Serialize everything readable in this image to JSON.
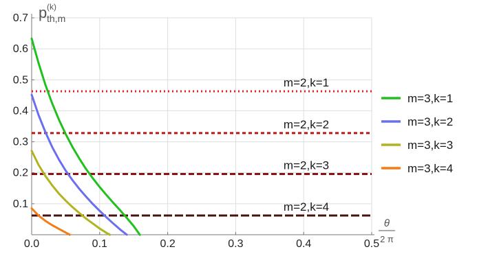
{
  "chart_data": {
    "type": "line",
    "xlim": [
      0,
      0.5
    ],
    "ylim": [
      0,
      0.7
    ],
    "x_ticks": [
      "0.0",
      "0.1",
      "0.2",
      "0.3",
      "0.4",
      "0.5"
    ],
    "y_ticks": [
      "0.1",
      "0.2",
      "0.3",
      "0.4",
      "0.5",
      "0.6",
      "0.7"
    ],
    "x_tick_values": [
      0,
      0.1,
      0.2,
      0.3,
      0.4,
      0.5
    ],
    "y_tick_values": [
      0.1,
      0.2,
      0.3,
      0.4,
      0.5,
      0.6,
      0.7
    ],
    "grid": true,
    "ylabel": {
      "base": "p",
      "sup": "(k)",
      "sub": "th,m"
    },
    "xlabel": {
      "numerator": "θ",
      "denominator": "2 π"
    },
    "legend_position": "right",
    "series": [
      {
        "name": "m=3,k=1",
        "color": "#22c01e",
        "x": [
          0,
          0.01,
          0.02,
          0.03,
          0.04,
          0.05,
          0.06,
          0.07,
          0.08,
          0.09,
          0.1,
          0.11,
          0.12,
          0.13,
          0.14,
          0.15,
          0.159
        ],
        "y": [
          0.633,
          0.555,
          0.485,
          0.425,
          0.372,
          0.325,
          0.283,
          0.246,
          0.212,
          0.182,
          0.154,
          0.128,
          0.103,
          0.079,
          0.054,
          0.028,
          0.0
        ]
      },
      {
        "name": "m=3,k=2",
        "color": "#6a6ef0",
        "x": [
          0,
          0.01,
          0.02,
          0.03,
          0.04,
          0.05,
          0.06,
          0.07,
          0.08,
          0.09,
          0.1,
          0.11,
          0.12,
          0.13,
          0.14
        ],
        "y": [
          0.452,
          0.387,
          0.332,
          0.284,
          0.243,
          0.207,
          0.176,
          0.148,
          0.123,
          0.099,
          0.077,
          0.056,
          0.036,
          0.017,
          0.0
        ]
      },
      {
        "name": "m=3,k=3",
        "color": "#b1b41e",
        "x": [
          0,
          0.01,
          0.02,
          0.03,
          0.04,
          0.05,
          0.06,
          0.07,
          0.08,
          0.09,
          0.1,
          0.11,
          0.115
        ],
        "y": [
          0.271,
          0.226,
          0.19,
          0.16,
          0.133,
          0.11,
          0.089,
          0.07,
          0.052,
          0.036,
          0.02,
          0.006,
          0.0
        ]
      },
      {
        "name": "m=3,k=4",
        "color": "#f57c15",
        "x": [
          0,
          0.01,
          0.02,
          0.03,
          0.04,
          0.05,
          0.056
        ],
        "y": [
          0.085,
          0.062,
          0.045,
          0.031,
          0.019,
          0.007,
          0.0
        ]
      }
    ],
    "thresholds": [
      {
        "label": "m=2,k=1",
        "y": 0.463,
        "color": "#e42020",
        "style": "dotted"
      },
      {
        "label": "m=2,k=2",
        "y": 0.328,
        "color": "#b81818",
        "style": "short-dash"
      },
      {
        "label": "m=2,k=3",
        "y": 0.196,
        "color": "#8e1010",
        "style": "dash"
      },
      {
        "label": "m=2,k=4",
        "y": 0.062,
        "color": "#4a0f0f",
        "style": "long-dash"
      }
    ]
  }
}
